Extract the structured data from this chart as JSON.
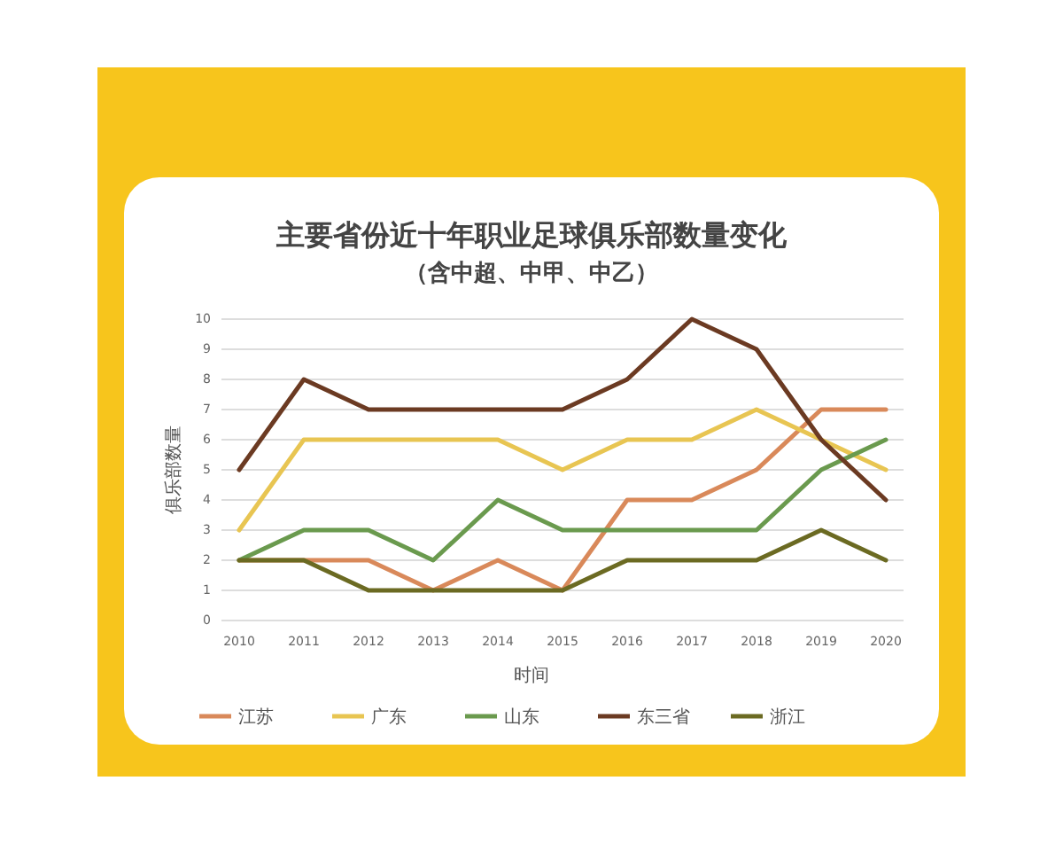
{
  "chart_data": {
    "type": "line",
    "title": "主要省份近十年职业足球俱乐部数量变化",
    "subtitle": "（含中超、中甲、中乙）",
    "xlabel": "时间",
    "ylabel": "俱乐部数量",
    "categories": [
      "2010",
      "2011",
      "2012",
      "2013",
      "2014",
      "2015",
      "2016",
      "2017",
      "2018",
      "2019",
      "2020"
    ],
    "series": [
      {
        "name": "江苏",
        "color": "#d9895a",
        "values": [
          2,
          2,
          2,
          1,
          2,
          1,
          4,
          4,
          5,
          7,
          7
        ]
      },
      {
        "name": "广东",
        "color": "#e8c552",
        "values": [
          3,
          6,
          6,
          6,
          6,
          5,
          6,
          6,
          7,
          6,
          5
        ]
      },
      {
        "name": "山东",
        "color": "#6a9a4e",
        "values": [
          2,
          3,
          3,
          2,
          4,
          3,
          3,
          3,
          3,
          5,
          6
        ]
      },
      {
        "name": "东三省",
        "color": "#6b3a22",
        "values": [
          5,
          8,
          7,
          7,
          7,
          7,
          8,
          10,
          9,
          6,
          4
        ]
      },
      {
        "name": "浙江",
        "color": "#6b6a22",
        "values": [
          2,
          2,
          1,
          1,
          1,
          1,
          2,
          2,
          2,
          3,
          2
        ]
      }
    ],
    "ylim": [
      0,
      10
    ],
    "yticks": [
      0,
      1,
      2,
      3,
      4,
      5,
      6,
      7,
      8,
      9,
      10
    ],
    "grid": "y",
    "legend": "bottom",
    "marker": "none",
    "line_style": "solid"
  }
}
